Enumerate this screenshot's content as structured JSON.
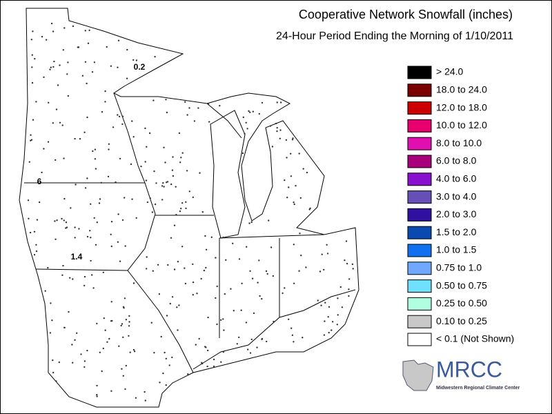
{
  "header": {
    "title": "Cooperative Network Snowfall (inches)",
    "subtitle": "24-Hour Period Ending the Morning of 1/10/2011"
  },
  "legend": {
    "items": [
      {
        "label": "> 24.0",
        "color": "#000000"
      },
      {
        "label": "18.0 to 24.0",
        "color": "#7a0000"
      },
      {
        "label": "12.0 to 18.0",
        "color": "#cc0000"
      },
      {
        "label": "10.0 to 12.0",
        "color": "#e8006e"
      },
      {
        "label": "8.0 to 10.0",
        "color": "#e010b0"
      },
      {
        "label": "6.0 to 8.0",
        "color": "#a8007a"
      },
      {
        "label": "4.0 to 6.0",
        "color": "#8a10d0"
      },
      {
        "label": "3.0 to 4.0",
        "color": "#6650b8"
      },
      {
        "label": "2.0 to 3.0",
        "color": "#3010a0"
      },
      {
        "label": "1.5 to 2.0",
        "color": "#0a4ab0"
      },
      {
        "label": "1.0 to 1.5",
        "color": "#1070f0"
      },
      {
        "label": "0.75 to 1.0",
        "color": "#70a8ff"
      },
      {
        "label": "0.50 to 0.75",
        "color": "#70e0ff"
      },
      {
        "label": "0.25 to 0.50",
        "color": "#b0ffe0"
      },
      {
        "label": "0.10 to 0.25",
        "color": "#c8c8c8"
      },
      {
        "label": "< 0.1 (Not Shown)",
        "color": "#ffffff"
      }
    ]
  },
  "map": {
    "labels": [
      "0.2",
      "6",
      "1.4"
    ]
  },
  "logo": {
    "name": "MRCC",
    "caption": "Midwestern Regional Climate Center"
  }
}
